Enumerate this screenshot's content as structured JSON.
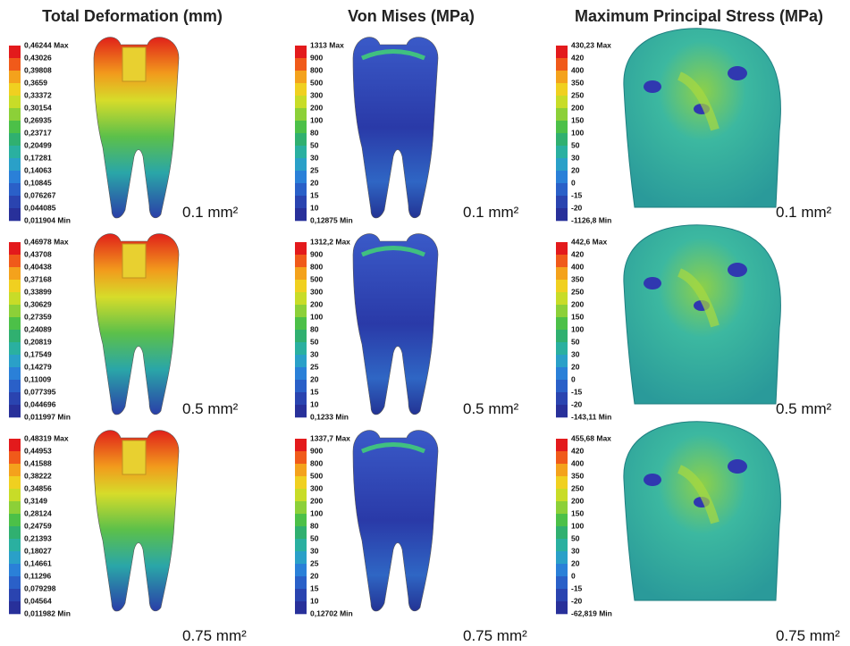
{
  "columns": [
    {
      "title": "Total Deformation (mm)",
      "panels": [
        {
          "legend": [
            "0,46244 Max",
            "0,43026",
            "0,39808",
            "0,3659",
            "0,33372",
            "0,30154",
            "0,26935",
            "0,23717",
            "0,20499",
            "0,17281",
            "0,14063",
            "0,10845",
            "0,076267",
            "0,044085",
            "0,011904 Min"
          ],
          "label": "0.1 mm²"
        },
        {
          "legend": [
            "0,46978 Max",
            "0,43708",
            "0,40438",
            "0,37168",
            "0,33899",
            "0,30629",
            "0,27359",
            "0,24089",
            "0,20819",
            "0,17549",
            "0,14279",
            "0,11009",
            "0,077395",
            "0,044696",
            "0,011997 Min"
          ],
          "label": "0.5 mm²"
        },
        {
          "legend": [
            "0,48319 Max",
            "0,44953",
            "0,41588",
            "0,38222",
            "0,34856",
            "0,3149",
            "0,28124",
            "0,24759",
            "0,21393",
            "0,18027",
            "0,14661",
            "0,11296",
            "0,079298",
            "0,04564",
            "0,011982 Min"
          ],
          "label": "0.75 mm²"
        }
      ]
    },
    {
      "title": "Von Mises (MPa)",
      "panels": [
        {
          "legend": [
            "1313 Max",
            "900",
            "800",
            "500",
            "300",
            "200",
            "100",
            "80",
            "50",
            "30",
            "25",
            "20",
            "15",
            "10",
            "0,12875 Min"
          ],
          "label": "0.1 mm²"
        },
        {
          "legend": [
            "1312,2 Max",
            "900",
            "800",
            "500",
            "300",
            "200",
            "100",
            "80",
            "50",
            "30",
            "25",
            "20",
            "15",
            "10",
            "0,1233 Min"
          ],
          "label": "0.5 mm²"
        },
        {
          "legend": [
            "1337,7 Max",
            "900",
            "800",
            "500",
            "300",
            "200",
            "100",
            "80",
            "50",
            "30",
            "25",
            "20",
            "15",
            "10",
            "0,12702 Min"
          ],
          "label": "0.75 mm²"
        }
      ]
    },
    {
      "title": "Maximum Principal Stress (MPa)",
      "panels": [
        {
          "legend": [
            "430,23 Max",
            "420",
            "400",
            "350",
            "250",
            "200",
            "150",
            "100",
            "50",
            "30",
            "20",
            "0",
            "-15",
            "-20",
            "-1126,8 Min"
          ],
          "label": "0.1 mm²"
        },
        {
          "legend": [
            "442,6 Max",
            "420",
            "400",
            "350",
            "250",
            "200",
            "150",
            "100",
            "50",
            "30",
            "20",
            "0",
            "-15",
            "-20",
            "-143,11 Min"
          ],
          "label": "0.5 mm²"
        },
        {
          "legend": [
            "455,68 Max",
            "420",
            "400",
            "350",
            "250",
            "200",
            "150",
            "100",
            "50",
            "30",
            "20",
            "0",
            "-15",
            "-20",
            "-62,819 Min"
          ],
          "label": "0.75 mm²"
        }
      ]
    }
  ]
}
